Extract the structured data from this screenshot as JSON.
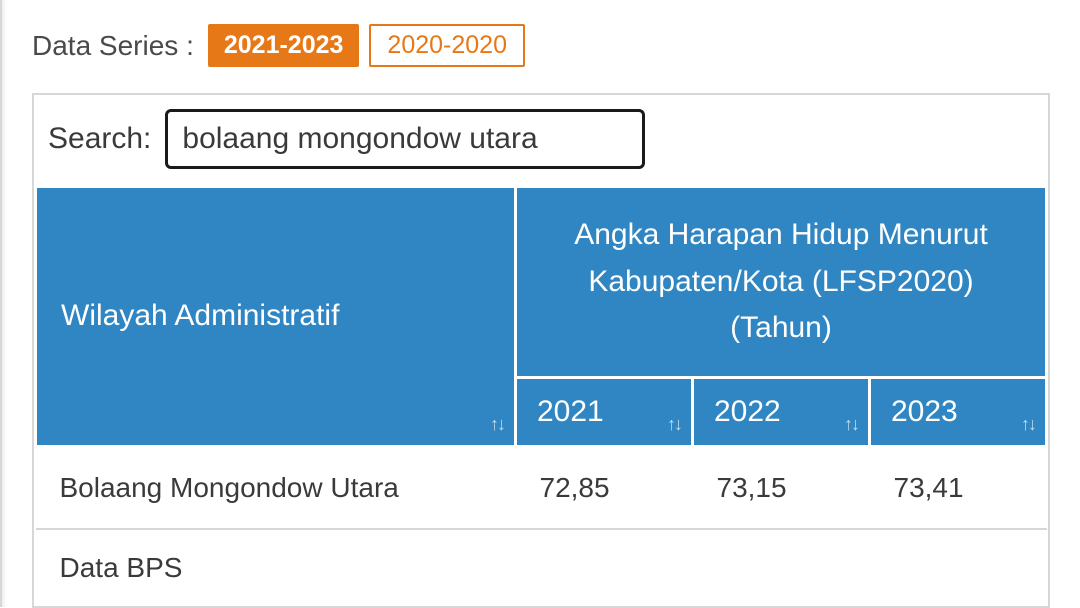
{
  "series": {
    "label": "Data Series :",
    "tabs": {
      "active": "2021-2023",
      "inactive": "2020-2020"
    }
  },
  "search": {
    "label": "Search:",
    "value": "bolaang mongondow utara"
  },
  "table": {
    "header": {
      "admin_label": "Wilayah Administratif",
      "group_label": "Angka Harapan Hidup Menurut Kabupaten/Kota (LFSP2020) (Tahun)",
      "years": {
        "y2021": "2021",
        "y2022": "2022",
        "y2023": "2023"
      },
      "sort_glyph": "↑↓"
    },
    "row": {
      "name": "Bolaang Mongondow Utara",
      "v2021": "72,85",
      "v2022": "73,15",
      "v2023": "73,41"
    },
    "footer": "Data BPS"
  },
  "style": {
    "brand_orange": "#e77817",
    "header_blue": "#2f86c2",
    "border_grey": "#d7d7d7",
    "text_color": "#3a3a3a"
  }
}
